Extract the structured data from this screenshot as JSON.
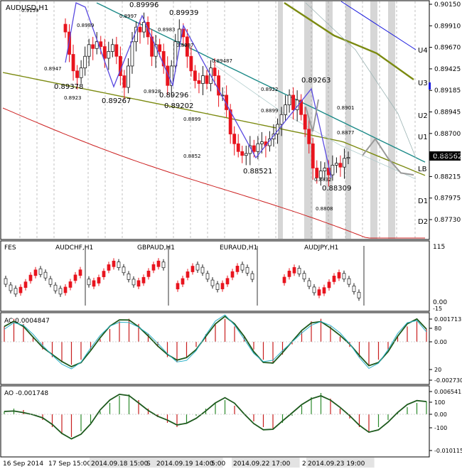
{
  "window": {
    "title": "AUDUSD,H1"
  },
  "colors": {
    "bull": "#1a1a1a",
    "bear": "#e8141e",
    "zigzag": "#5a4ae0",
    "ma_olive": "#7b8a10",
    "ma_teal": "#1c8a88",
    "ma_red": "#cc2020",
    "channel": "#1a1adf",
    "grid": "#c8c8c8",
    "shade": "#d6d6d6",
    "projection": "#9a9a9a",
    "ac_signal": "#2ab0c8",
    "osc_line": "#1d5a1d",
    "osc_up": "#2c8a2c",
    "osc_down": "#c81e1e"
  },
  "chart_data": [
    {
      "type": "candlestick",
      "symbol": "AUDUSD",
      "timeframe": "H1",
      "title": "AUDUSD,H1",
      "ylim": [
        0.8773,
        0.9015
      ],
      "price_axis": [
        "0.90150",
        "0.89910",
        "0.89670",
        "0.89425",
        "0.89185",
        "0.88945",
        "0.88700",
        "0.88460",
        "0.88215",
        "0.87975",
        "0.87730"
      ],
      "current_price": "0.88562",
      "levels": [
        "U4",
        "U3",
        "U2",
        "U1",
        "LB",
        "D1",
        "D2"
      ],
      "swing_labels": [
        {
          "text": "0.89378",
          "price": 0.89378
        },
        {
          "text": "0.89267",
          "price": 0.89267
        },
        {
          "text": "0.89996",
          "price": 0.89996
        },
        {
          "text": "0.89939",
          "price": 0.89939
        },
        {
          "text": "0.89296",
          "price": 0.89296
        },
        {
          "text": "0.89202",
          "price": 0.89202
        },
        {
          "text": "0.88521",
          "price": 0.88521
        },
        {
          "text": "0.89263",
          "price": 0.89263
        },
        {
          "text": "0.88309",
          "price": 0.88309
        }
      ],
      "small_labels": [
        "0.9159",
        "0.8947",
        "0.8923",
        "0.8989",
        "0.8997",
        "0.8983",
        "0.8928",
        "0.8987",
        "0.89487",
        "0.8899",
        "0.8922",
        "0.8899",
        "0.8852",
        "0.8832",
        "0.8808",
        "0.8901",
        "0.8877"
      ],
      "close_series": [
        0.8985,
        0.8962,
        0.8945,
        0.8938,
        0.8948,
        0.896,
        0.8972,
        0.8968,
        0.8975,
        0.897,
        0.8958,
        0.8965,
        0.8972,
        0.896,
        0.894,
        0.8928,
        0.895,
        0.8975,
        0.899,
        0.8985,
        0.8995,
        0.898,
        0.896,
        0.8972,
        0.8965,
        0.895,
        0.893,
        0.895,
        0.8975,
        0.8988,
        0.898,
        0.896,
        0.8945,
        0.8935,
        0.8932,
        0.894,
        0.8932,
        0.8948,
        0.894,
        0.892,
        0.892,
        0.8905,
        0.888,
        0.887,
        0.8862,
        0.8858,
        0.886,
        0.8868,
        0.8862,
        0.887,
        0.8872,
        0.8868,
        0.8875,
        0.888,
        0.889,
        0.89,
        0.891,
        0.892,
        0.8905,
        0.8915,
        0.89,
        0.8885,
        0.887,
        0.8845,
        0.8835,
        0.8842,
        0.8845,
        0.8838,
        0.8848,
        0.885,
        0.8846,
        0.8855,
        0.8856
      ],
      "projection": [
        0.8858,
        0.8875,
        0.8855,
        0.884,
        0.8838
      ]
    },
    {
      "type": "multi-line",
      "panel": "cross-pair mini charts",
      "series": [
        {
          "name": "AUDCHF,H1"
        },
        {
          "name": "GBPAUD,H1"
        },
        {
          "name": "EURAUD,H1"
        },
        {
          "name": "AUDJPY,H1"
        }
      ],
      "corner_label": "FES",
      "axis_labels": [
        "115",
        "0.00",
        "-15"
      ]
    },
    {
      "type": "bar",
      "panel": "Accelerator Oscillator",
      "label": "AC",
      "current": "0.0004847",
      "axis_labels": [
        "0.001713",
        "80",
        "0.00",
        "20",
        "-0.002730"
      ],
      "values": [
        0.6,
        0.9,
        0.7,
        0.2,
        -0.3,
        -0.6,
        -0.8,
        -0.9,
        -0.7,
        -0.3,
        0.1,
        0.5,
        0.8,
        0.9,
        0.7,
        0.3,
        -0.2,
        -0.6,
        -0.8,
        -0.6,
        -0.2,
        0.3,
        0.7,
        0.9,
        0.6,
        0.2,
        -0.3,
        -0.7,
        -0.8,
        -0.5,
        -0.1,
        0.4,
        0.8,
        0.9,
        0.6,
        0.2,
        -0.2,
        -0.6,
        -0.9,
        -0.7,
        -0.3,
        0.2,
        0.6,
        0.8,
        0.5
      ]
    },
    {
      "type": "bar",
      "panel": "Awesome Oscillator",
      "label": "AO",
      "current": "-0.001748",
      "axis_labels": [
        "0.006541",
        "100",
        "0.00",
        "-100",
        "-0.010115"
      ],
      "values": [
        0.1,
        0.2,
        0.15,
        0.0,
        -0.2,
        -0.45,
        -0.7,
        -0.8,
        -0.6,
        -0.3,
        0.1,
        0.4,
        0.65,
        0.7,
        0.5,
        0.2,
        -0.1,
        -0.3,
        -0.45,
        -0.3,
        -0.05,
        0.2,
        0.4,
        0.5,
        0.3,
        0.0,
        -0.25,
        -0.45,
        -0.5,
        -0.3,
        -0.05,
        0.3,
        0.6,
        0.75,
        0.55,
        0.2,
        -0.15,
        -0.45,
        -0.6,
        -0.45,
        -0.2,
        0.05,
        0.25,
        0.4,
        0.45
      ]
    }
  ],
  "time_axis": [
    "16 Sep 2014",
    "17 Sep 15:00",
    "2014.09.18 15:00",
    "S",
    "2014.09.19 14:00",
    "5:00",
    "2014.09.22 17:00",
    "2014.",
    "2014.09.23 19:00"
  ]
}
